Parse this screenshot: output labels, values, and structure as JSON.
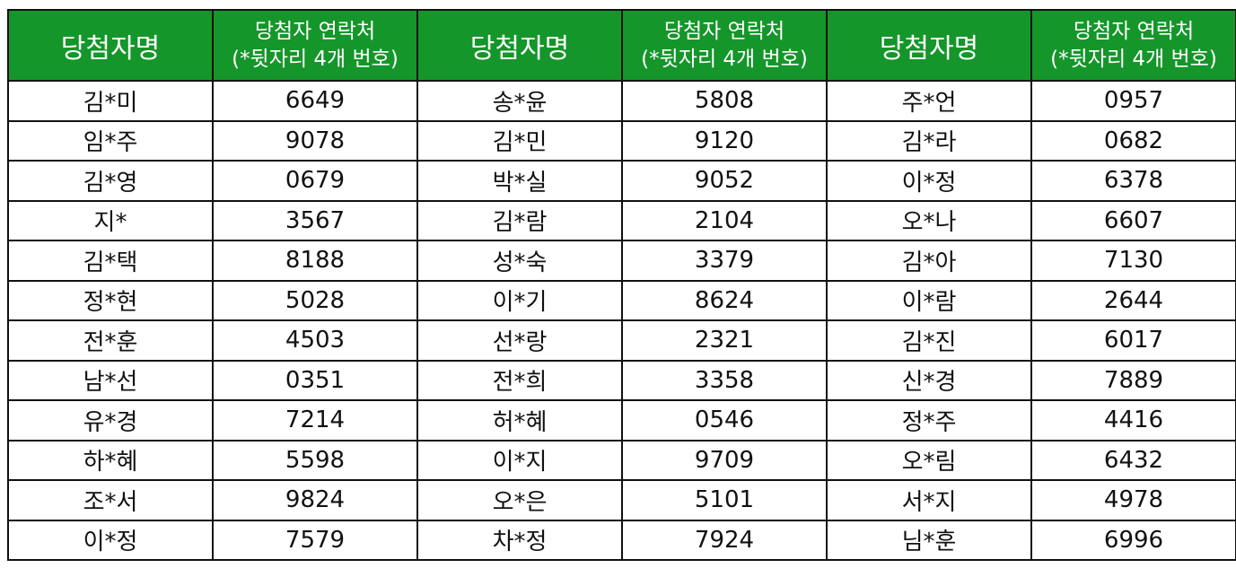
{
  "header": {
    "name_label": "당첨자명",
    "contact_label_line1": "당첨자 연락처",
    "contact_label_line2": "(*뒷자리 4개 번호)"
  },
  "colors": {
    "header_bg": "#15962a",
    "header_text": "#ffffff",
    "border": "#111111"
  },
  "groups": [
    {
      "rows": [
        {
          "name": "김*미",
          "phone": "6649"
        },
        {
          "name": "임*주",
          "phone": "9078"
        },
        {
          "name": "김*영",
          "phone": "0679"
        },
        {
          "name": "지*",
          "phone": "3567"
        },
        {
          "name": "김*택",
          "phone": "8188"
        },
        {
          "name": "정*현",
          "phone": "5028"
        },
        {
          "name": "전*훈",
          "phone": "4503"
        },
        {
          "name": "남*선",
          "phone": "0351"
        },
        {
          "name": "유*경",
          "phone": "7214"
        },
        {
          "name": "하*혜",
          "phone": "5598"
        },
        {
          "name": "조*서",
          "phone": "9824"
        },
        {
          "name": "이*정",
          "phone": "7579"
        }
      ]
    },
    {
      "rows": [
        {
          "name": "송*윤",
          "phone": "5808"
        },
        {
          "name": "김*민",
          "phone": "9120"
        },
        {
          "name": "박*실",
          "phone": "9052"
        },
        {
          "name": "김*람",
          "phone": "2104"
        },
        {
          "name": "성*숙",
          "phone": "3379"
        },
        {
          "name": "이*기",
          "phone": "8624"
        },
        {
          "name": "선*랑",
          "phone": "2321"
        },
        {
          "name": "전*희",
          "phone": "3358"
        },
        {
          "name": "허*혜",
          "phone": "0546"
        },
        {
          "name": "이*지",
          "phone": "9709"
        },
        {
          "name": "오*은",
          "phone": "5101"
        },
        {
          "name": "차*정",
          "phone": "7924"
        }
      ]
    },
    {
      "rows": [
        {
          "name": "주*언",
          "phone": "0957"
        },
        {
          "name": "김*라",
          "phone": "0682"
        },
        {
          "name": "이*정",
          "phone": "6378"
        },
        {
          "name": "오*나",
          "phone": "6607"
        },
        {
          "name": "김*아",
          "phone": "7130"
        },
        {
          "name": "이*람",
          "phone": "2644"
        },
        {
          "name": "김*진",
          "phone": "6017"
        },
        {
          "name": "신*경",
          "phone": "7889"
        },
        {
          "name": "정*주",
          "phone": "4416"
        },
        {
          "name": "오*림",
          "phone": "6432"
        },
        {
          "name": "서*지",
          "phone": "4978"
        },
        {
          "name": "님*훈",
          "phone": "6996"
        }
      ]
    }
  ]
}
